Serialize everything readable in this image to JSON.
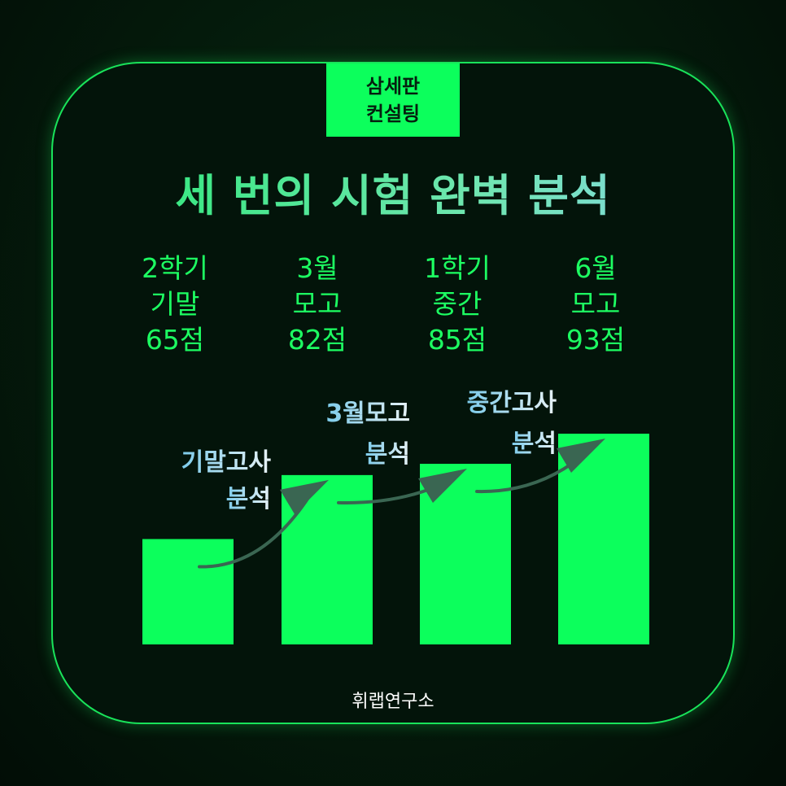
{
  "badge": {
    "line1": "삼세판",
    "line2": "컨설팅"
  },
  "title": "세 번의 시험 완벽 분석",
  "columns": [
    {
      "line1": "2학기",
      "line2": "기말",
      "line3": "65점"
    },
    {
      "line1": "3월",
      "line2": "모고",
      "line3": "82점"
    },
    {
      "line1": "1학기",
      "line2": "중간",
      "line3": "85점"
    },
    {
      "line1": "6월",
      "line2": "모고",
      "line3": "93점"
    }
  ],
  "annotations": [
    {
      "line1": "기말고사",
      "line2": "분석"
    },
    {
      "line1": "3월모고",
      "line2": "분석"
    },
    {
      "line1": "중간고사",
      "line2": "분석"
    }
  ],
  "footer": "휘랩연구소",
  "colors": {
    "bar": "#0cff5c",
    "arrow": "#3a6652",
    "accent": "#19e35a"
  },
  "chart_data": {
    "type": "bar",
    "categories": [
      "2학기 기말",
      "3월 모고",
      "1학기 중간",
      "6월 모고"
    ],
    "values": [
      65,
      82,
      85,
      93
    ],
    "ylim": [
      37,
      93
    ],
    "grid": false
  }
}
